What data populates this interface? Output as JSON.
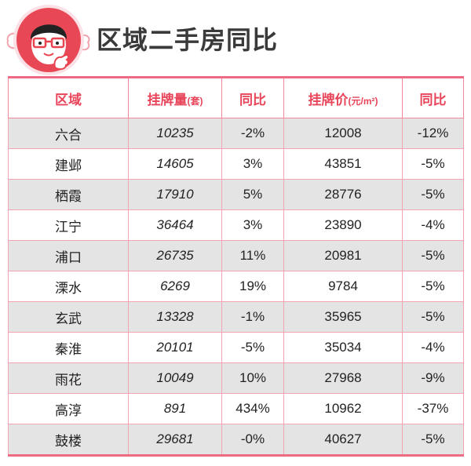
{
  "title": "区域二手房同比",
  "logo": {
    "icon": "mascot-logo-icon"
  },
  "colors": {
    "accent": "#e8455a",
    "border": "#ef6a83",
    "row_alt": "#e4e4e4",
    "text": "#222222",
    "title": "#3a3a3a"
  },
  "table": {
    "headers": [
      {
        "main": "区域",
        "sub": ""
      },
      {
        "main": "挂牌量",
        "sub": "(套)"
      },
      {
        "main": "同比",
        "sub": ""
      },
      {
        "main": "挂牌价",
        "sub": "(元/m²)"
      },
      {
        "main": "同比",
        "sub": ""
      }
    ],
    "rows": [
      [
        "六合",
        "10235",
        "-2%",
        "12008",
        "-12%"
      ],
      [
        "建邺",
        "14605",
        "3%",
        "43851",
        "-5%"
      ],
      [
        "栖霞",
        "17910",
        "5%",
        "28776",
        "-5%"
      ],
      [
        "江宁",
        "36464",
        "3%",
        "23890",
        "-4%"
      ],
      [
        "浦口",
        "26735",
        "11%",
        "20981",
        "-5%"
      ],
      [
        "溧水",
        "6269",
        "19%",
        "9784",
        "-5%"
      ],
      [
        "玄武",
        "13328",
        "-1%",
        "35965",
        "-5%"
      ],
      [
        "秦淮",
        "20101",
        "-5%",
        "35034",
        "-4%"
      ],
      [
        "雨花",
        "10049",
        "10%",
        "27968",
        "-9%"
      ],
      [
        "高淳",
        "891",
        "434%",
        "10962",
        "-37%"
      ],
      [
        "鼓楼",
        "29681",
        "-0%",
        "40627",
        "-5%"
      ]
    ]
  }
}
